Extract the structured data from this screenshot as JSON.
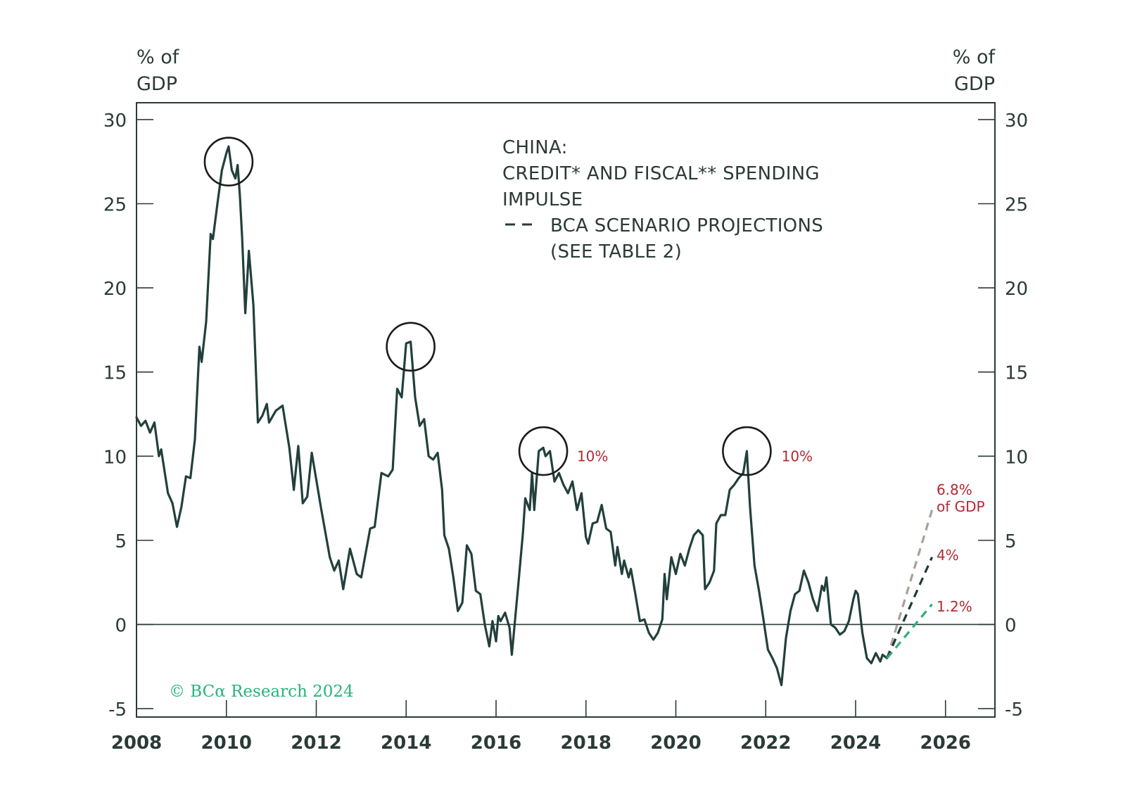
{
  "chart_data": {
    "type": "line",
    "title_lines": [
      "CHINA:",
      "CREDIT* AND FISCAL** SPENDING",
      "IMPULSE"
    ],
    "legend_lines": [
      "BCA SCENARIO PROJECTIONS",
      "(SEE TABLE 2)"
    ],
    "ylabel_left": [
      "% of",
      "GDP"
    ],
    "ylabel_right": [
      "% of",
      "GDP"
    ],
    "ylim": [
      -5.5,
      31
    ],
    "xlim": [
      2008,
      2027.1
    ],
    "yticks": [
      30,
      25,
      20,
      15,
      10,
      5,
      0,
      -5
    ],
    "ytick_labels": [
      "30",
      "25",
      "20",
      "15",
      "10",
      "5",
      "0",
      "-5"
    ],
    "xticks": [
      2008,
      2010,
      2012,
      2014,
      2016,
      2018,
      2020,
      2022,
      2024,
      2026
    ],
    "xtick_labels": [
      "2008",
      "2010",
      "2012",
      "2014",
      "2016",
      "2018",
      "2020",
      "2022",
      "2024",
      "2026"
    ],
    "series": [
      {
        "name": "Credit and fiscal spending impulse",
        "color": "#22403c",
        "points": [
          [
            2008.0,
            12.3
          ],
          [
            2008.1,
            11.8
          ],
          [
            2008.2,
            12.1
          ],
          [
            2008.3,
            11.4
          ],
          [
            2008.4,
            12.0
          ],
          [
            2008.45,
            11.0
          ],
          [
            2008.5,
            10.0
          ],
          [
            2008.55,
            10.4
          ],
          [
            2008.7,
            7.8
          ],
          [
            2008.8,
            7.2
          ],
          [
            2008.9,
            5.8
          ],
          [
            2009.0,
            7.0
          ],
          [
            2009.1,
            8.8
          ],
          [
            2009.2,
            8.7
          ],
          [
            2009.3,
            11.0
          ],
          [
            2009.4,
            16.5
          ],
          [
            2009.45,
            15.6
          ],
          [
            2009.55,
            18.0
          ],
          [
            2009.65,
            23.2
          ],
          [
            2009.7,
            22.9
          ],
          [
            2009.8,
            25.0
          ],
          [
            2009.9,
            27.0
          ],
          [
            2010.0,
            28.0
          ],
          [
            2010.05,
            28.4
          ],
          [
            2010.12,
            27.0
          ],
          [
            2010.2,
            26.5
          ],
          [
            2010.25,
            27.3
          ],
          [
            2010.3,
            25.5
          ],
          [
            2010.35,
            23.0
          ],
          [
            2010.42,
            18.5
          ],
          [
            2010.5,
            22.2
          ],
          [
            2010.6,
            19.0
          ],
          [
            2010.7,
            12.0
          ],
          [
            2010.8,
            12.4
          ],
          [
            2010.9,
            13.1
          ],
          [
            2010.95,
            12.0
          ],
          [
            2011.1,
            12.7
          ],
          [
            2011.25,
            13.0
          ],
          [
            2011.4,
            10.5
          ],
          [
            2011.5,
            8.0
          ],
          [
            2011.6,
            10.6
          ],
          [
            2011.7,
            7.2
          ],
          [
            2011.8,
            7.6
          ],
          [
            2011.9,
            10.2
          ],
          [
            2012.1,
            7.0
          ],
          [
            2012.3,
            4.0
          ],
          [
            2012.4,
            3.2
          ],
          [
            2012.5,
            3.8
          ],
          [
            2012.6,
            2.1
          ],
          [
            2012.75,
            4.5
          ],
          [
            2012.9,
            3.0
          ],
          [
            2013.0,
            2.8
          ],
          [
            2013.2,
            5.7
          ],
          [
            2013.3,
            5.8
          ],
          [
            2013.45,
            9.0
          ],
          [
            2013.6,
            8.8
          ],
          [
            2013.7,
            9.2
          ],
          [
            2013.8,
            14.0
          ],
          [
            2013.9,
            13.5
          ],
          [
            2014.0,
            16.7
          ],
          [
            2014.1,
            16.8
          ],
          [
            2014.2,
            13.5
          ],
          [
            2014.3,
            11.8
          ],
          [
            2014.4,
            12.2
          ],
          [
            2014.5,
            10.0
          ],
          [
            2014.6,
            9.8
          ],
          [
            2014.7,
            10.2
          ],
          [
            2014.8,
            8.0
          ],
          [
            2014.85,
            5.3
          ],
          [
            2014.95,
            4.5
          ],
          [
            2015.05,
            2.8
          ],
          [
            2015.15,
            0.8
          ],
          [
            2015.25,
            1.3
          ],
          [
            2015.35,
            4.7
          ],
          [
            2015.45,
            4.2
          ],
          [
            2015.55,
            2.0
          ],
          [
            2015.65,
            1.8
          ],
          [
            2015.75,
            0.0
          ],
          [
            2015.85,
            -1.3
          ],
          [
            2015.92,
            0.2
          ],
          [
            2016.0,
            -1.0
          ],
          [
            2016.05,
            0.5
          ],
          [
            2016.1,
            0.2
          ],
          [
            2016.2,
            0.7
          ],
          [
            2016.3,
            -0.2
          ],
          [
            2016.35,
            -1.8
          ],
          [
            2016.5,
            2.5
          ],
          [
            2016.6,
            5.5
          ],
          [
            2016.65,
            7.5
          ],
          [
            2016.75,
            6.8
          ],
          [
            2016.8,
            9.0
          ],
          [
            2016.85,
            6.8
          ],
          [
            2016.95,
            10.3
          ],
          [
            2017.05,
            10.5
          ],
          [
            2017.1,
            10.0
          ],
          [
            2017.2,
            10.3
          ],
          [
            2017.3,
            8.5
          ],
          [
            2017.4,
            9.0
          ],
          [
            2017.5,
            8.3
          ],
          [
            2017.6,
            7.8
          ],
          [
            2017.7,
            8.5
          ],
          [
            2017.8,
            6.8
          ],
          [
            2017.9,
            7.8
          ],
          [
            2018.0,
            5.2
          ],
          [
            2018.05,
            4.8
          ],
          [
            2018.15,
            6.0
          ],
          [
            2018.25,
            6.1
          ],
          [
            2018.35,
            7.1
          ],
          [
            2018.45,
            5.7
          ],
          [
            2018.55,
            5.5
          ],
          [
            2018.65,
            3.5
          ],
          [
            2018.7,
            4.6
          ],
          [
            2018.8,
            3.0
          ],
          [
            2018.85,
            3.8
          ],
          [
            2018.95,
            2.8
          ],
          [
            2019.0,
            3.3
          ],
          [
            2019.1,
            1.8
          ],
          [
            2019.2,
            0.2
          ],
          [
            2019.3,
            0.3
          ],
          [
            2019.4,
            -0.5
          ],
          [
            2019.5,
            -0.9
          ],
          [
            2019.6,
            -0.5
          ],
          [
            2019.7,
            0.3
          ],
          [
            2019.75,
            3.0
          ],
          [
            2019.8,
            1.5
          ],
          [
            2019.9,
            4.0
          ],
          [
            2020.0,
            3.0
          ],
          [
            2020.1,
            4.2
          ],
          [
            2020.2,
            3.5
          ],
          [
            2020.3,
            4.5
          ],
          [
            2020.4,
            5.3
          ],
          [
            2020.5,
            5.6
          ],
          [
            2020.6,
            5.3
          ],
          [
            2020.65,
            2.1
          ],
          [
            2020.75,
            2.5
          ],
          [
            2020.85,
            3.2
          ],
          [
            2020.9,
            6.0
          ],
          [
            2021.0,
            6.5
          ],
          [
            2021.1,
            6.5
          ],
          [
            2021.2,
            8.0
          ],
          [
            2021.3,
            8.3
          ],
          [
            2021.4,
            8.7
          ],
          [
            2021.5,
            9.0
          ],
          [
            2021.58,
            10.3
          ],
          [
            2021.65,
            7.0
          ],
          [
            2021.75,
            3.5
          ],
          [
            2021.85,
            2.0
          ],
          [
            2021.95,
            0.3
          ],
          [
            2022.05,
            -1.5
          ],
          [
            2022.15,
            -2.0
          ],
          [
            2022.25,
            -2.6
          ],
          [
            2022.35,
            -3.6
          ],
          [
            2022.45,
            -0.8
          ],
          [
            2022.55,
            0.8
          ],
          [
            2022.65,
            1.8
          ],
          [
            2022.75,
            2.0
          ],
          [
            2022.85,
            3.2
          ],
          [
            2022.95,
            2.5
          ],
          [
            2023.05,
            1.5
          ],
          [
            2023.15,
            0.8
          ],
          [
            2023.25,
            2.3
          ],
          [
            2023.3,
            2.0
          ],
          [
            2023.35,
            2.8
          ],
          [
            2023.45,
            0.0
          ],
          [
            2023.55,
            -0.2
          ],
          [
            2023.65,
            -0.6
          ],
          [
            2023.75,
            -0.4
          ],
          [
            2023.85,
            0.2
          ],
          [
            2023.95,
            1.5
          ],
          [
            2024.0,
            2.0
          ],
          [
            2024.05,
            1.8
          ],
          [
            2024.15,
            -0.5
          ],
          [
            2024.25,
            -2.0
          ],
          [
            2024.35,
            -2.3
          ],
          [
            2024.45,
            -1.7
          ],
          [
            2024.55,
            -2.2
          ],
          [
            2024.6,
            -1.8
          ],
          [
            2024.7,
            -2.0
          ]
        ]
      }
    ],
    "projections": [
      {
        "label": "6.8%",
        "label2": "of GDP",
        "start": [
          2024.7,
          -2.0
        ],
        "end": [
          2025.7,
          6.8
        ],
        "color": "#a9a096"
      },
      {
        "label": "4%",
        "start": [
          2024.7,
          -2.0
        ],
        "end": [
          2025.7,
          4.0
        ],
        "color": "#1f3a36"
      },
      {
        "label": "1.2%",
        "start": [
          2024.7,
          -2.0
        ],
        "end": [
          2025.7,
          1.2
        ],
        "color": "#2fae7a"
      }
    ],
    "highlights": [
      {
        "x": 2010.05,
        "y": 27.5
      },
      {
        "x": 2014.1,
        "y": 16.5
      },
      {
        "x": 2017.05,
        "y": 10.3
      },
      {
        "x": 2021.58,
        "y": 10.3
      }
    ],
    "annotations": [
      {
        "text": "10%",
        "x": 2017.8,
        "y": 10.0
      },
      {
        "text": "10%",
        "x": 2022.35,
        "y": 10.0
      }
    ],
    "copyright": "© BCα Research 2024",
    "colors": {
      "line": "#22403c",
      "frame": "#2b3a36",
      "accent_red": "#b22a33",
      "brand_green": "#29b47c"
    }
  }
}
